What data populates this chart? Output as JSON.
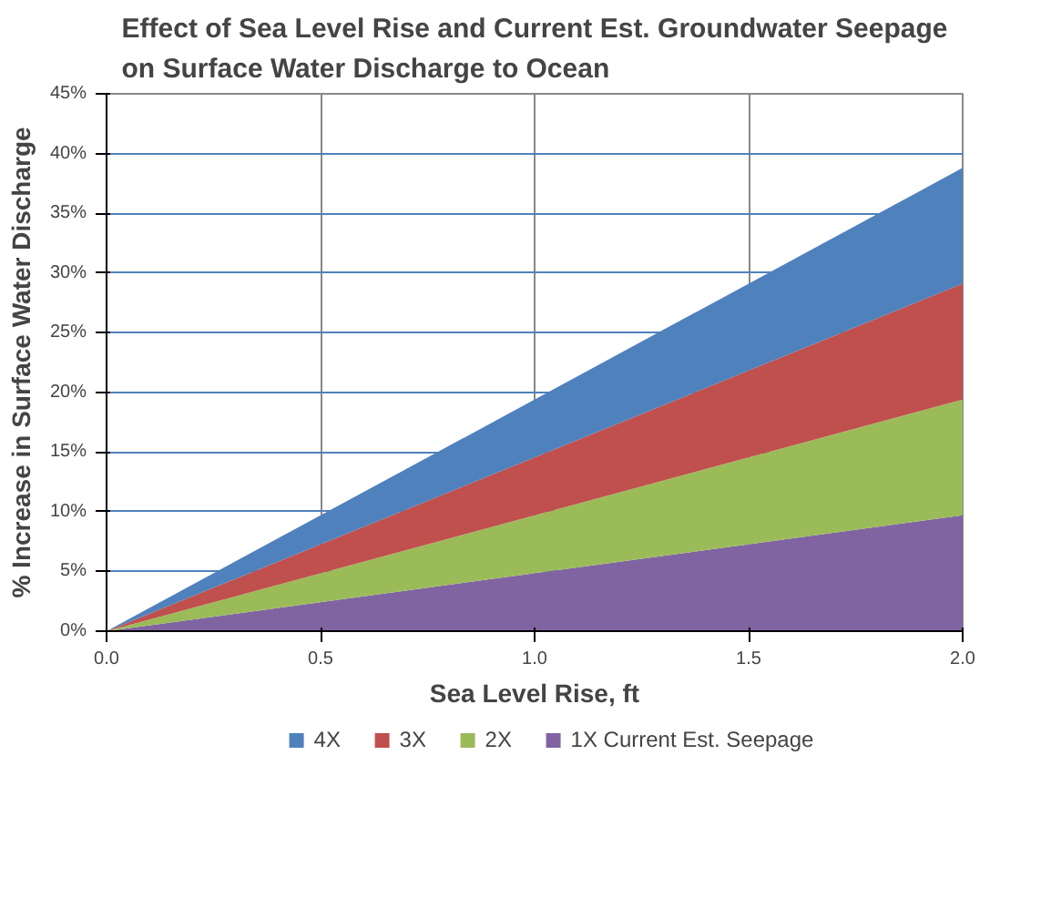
{
  "chart_data": {
    "type": "area",
    "title": "Effect of Sea Level Rise and Current Est. Groundwater Seepage\non Surface Water Discharge to Ocean",
    "xlabel": "Sea Level Rise, ft",
    "ylabel": "% Increase in Surface Water Discharge",
    "stacked": true,
    "x": [
      0,
      2.0
    ],
    "series": [
      {
        "name": "1X Current Est. Seepage",
        "color": "#8064a2",
        "values": [
          0,
          9.7
        ]
      },
      {
        "name": "2X",
        "color": "#9bbb59",
        "values": [
          0,
          9.7
        ]
      },
      {
        "name": "3X",
        "color": "#c0504d",
        "values": [
          0,
          9.7
        ]
      },
      {
        "name": "4X",
        "color": "#4f81bd",
        "values": [
          0,
          9.7
        ]
      }
    ],
    "xlim": [
      0,
      2.0
    ],
    "xticks": [
      {
        "value": 0,
        "label": "0.0"
      },
      {
        "value": 0.5,
        "label": "0.5"
      },
      {
        "value": 1.0,
        "label": "1.0"
      },
      {
        "value": 1.5,
        "label": "1.5"
      },
      {
        "value": 2.0,
        "label": "2.0"
      }
    ],
    "ylim": [
      0,
      45
    ],
    "yticks": [
      {
        "value": 0,
        "label": "0%"
      },
      {
        "value": 5,
        "label": "5%"
      },
      {
        "value": 10,
        "label": "10%"
      },
      {
        "value": 15,
        "label": "15%"
      },
      {
        "value": 20,
        "label": "20%"
      },
      {
        "value": 25,
        "label": "25%"
      },
      {
        "value": 30,
        "label": "30%"
      },
      {
        "value": 35,
        "label": "35%"
      },
      {
        "value": 40,
        "label": "40%"
      },
      {
        "value": 45,
        "label": "45%"
      }
    ],
    "grid": true,
    "legend": "bottom"
  }
}
